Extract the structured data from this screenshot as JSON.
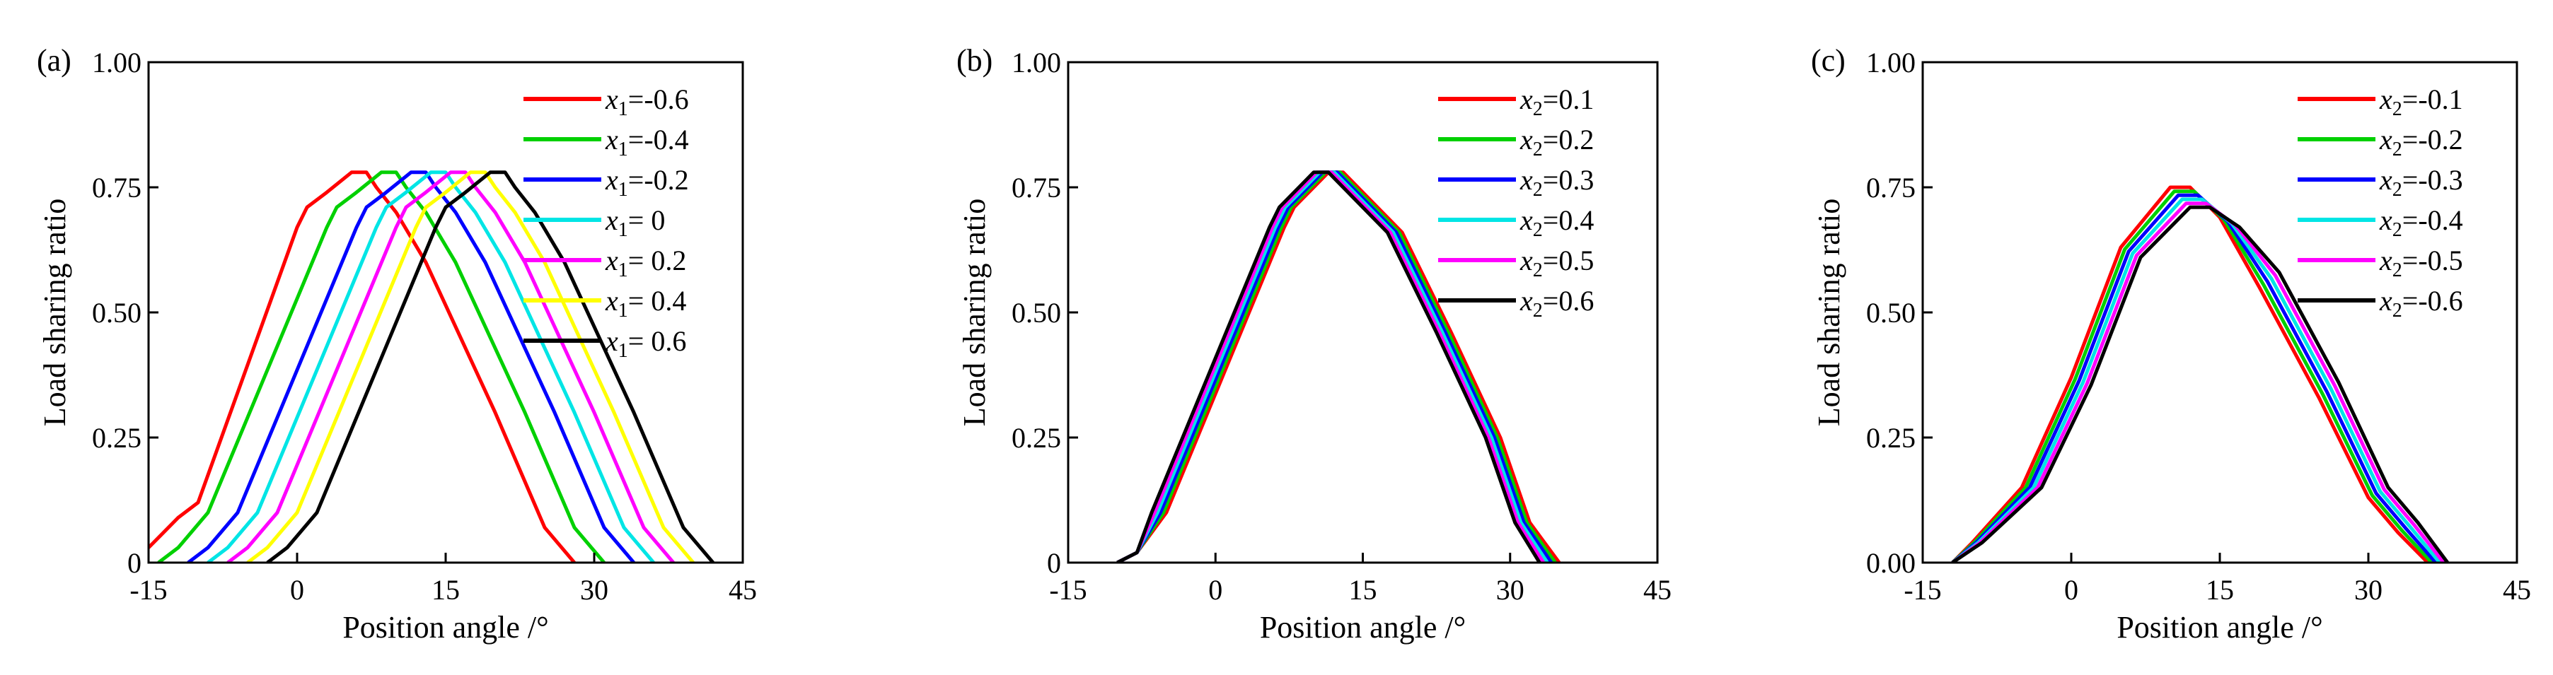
{
  "chart_data": [
    {
      "type": "line",
      "panel_label": "(a)",
      "xlabel": "Position angle /°",
      "ylabel": "Load sharing ratio",
      "xlim": [
        -15,
        45
      ],
      "ylim": [
        0,
        1
      ],
      "xticks": [
        -15,
        0,
        15,
        30,
        45
      ],
      "yticks": [
        0,
        0.25,
        0.5,
        0.75,
        1.0
      ],
      "xtick_labels": [
        "-15",
        "0",
        "15",
        "30",
        "45"
      ],
      "ytick_labels": [
        "0",
        "0.25",
        "0.50",
        "0.75",
        "1.00"
      ],
      "legend_placement": "top-right",
      "series": [
        {
          "name": "x1=-0.6",
          "legend_var": "x",
          "legend_sub": "1",
          "legend_val": "=-0.6",
          "color": "#ff0000",
          "x": [
            -15,
            -12,
            -10,
            0,
            1,
            3,
            5.5,
            7,
            8,
            10,
            13,
            20,
            25,
            28
          ],
          "y": [
            0.03,
            0.09,
            0.12,
            0.67,
            0.71,
            0.74,
            0.78,
            0.78,
            0.75,
            0.7,
            0.6,
            0.3,
            0.07,
            0
          ]
        },
        {
          "name": "x1=-0.4",
          "legend_var": "x",
          "legend_sub": "1",
          "legend_val": "=-0.4",
          "color": "#00d000",
          "x": [
            -14,
            -12,
            -9,
            3,
            4,
            6,
            8.5,
            10,
            11,
            13,
            16,
            23,
            28,
            31
          ],
          "y": [
            0,
            0.03,
            0.1,
            0.67,
            0.71,
            0.74,
            0.78,
            0.78,
            0.75,
            0.7,
            0.6,
            0.3,
            0.07,
            0
          ]
        },
        {
          "name": "x1=-0.2",
          "legend_var": "x",
          "legend_sub": "1",
          "legend_val": "=-0.2",
          "color": "#0000ff",
          "x": [
            -11,
            -9,
            -6,
            6,
            7,
            9,
            11.5,
            13,
            14,
            16,
            19,
            26,
            31,
            34
          ],
          "y": [
            0,
            0.03,
            0.1,
            0.67,
            0.71,
            0.74,
            0.78,
            0.78,
            0.75,
            0.7,
            0.6,
            0.3,
            0.07,
            0
          ]
        },
        {
          "name": "x1= 0",
          "legend_var": "x",
          "legend_sub": "1",
          "legend_val": "= 0",
          "color": "#00e5e5",
          "x": [
            -9,
            -7,
            -4,
            8,
            9,
            11,
            13.5,
            15,
            16,
            18,
            21,
            28,
            33,
            36
          ],
          "y": [
            0,
            0.03,
            0.1,
            0.67,
            0.71,
            0.74,
            0.78,
            0.78,
            0.75,
            0.7,
            0.6,
            0.3,
            0.07,
            0
          ]
        },
        {
          "name": "x1= 0.2",
          "legend_var": "x",
          "legend_sub": "1",
          "legend_val": "= 0.2",
          "color": "#ff00ff",
          "x": [
            -7,
            -5,
            -2,
            10,
            11,
            13,
            15.5,
            17,
            18,
            20,
            23,
            30,
            35,
            38
          ],
          "y": [
            0,
            0.03,
            0.1,
            0.67,
            0.71,
            0.74,
            0.78,
            0.78,
            0.75,
            0.7,
            0.6,
            0.3,
            0.07,
            0
          ]
        },
        {
          "name": "x1= 0.4",
          "legend_var": "x",
          "legend_sub": "1",
          "legend_val": "= 0.4",
          "color": "#ffff00",
          "x": [
            -5,
            -3,
            0,
            12,
            13,
            15,
            17.5,
            19,
            20,
            22,
            25,
            32,
            37,
            40
          ],
          "y": [
            0,
            0.03,
            0.1,
            0.67,
            0.71,
            0.74,
            0.78,
            0.78,
            0.75,
            0.7,
            0.6,
            0.3,
            0.07,
            0
          ]
        },
        {
          "name": "x1= 0.6",
          "legend_var": "x",
          "legend_sub": "1",
          "legend_val": "= 0.6",
          "color": "#000000",
          "x": [
            -3,
            -1,
            2,
            14,
            15,
            17,
            19.5,
            21,
            22,
            24,
            27,
            34,
            39,
            42
          ],
          "y": [
            0,
            0.03,
            0.1,
            0.67,
            0.71,
            0.74,
            0.78,
            0.78,
            0.75,
            0.7,
            0.6,
            0.3,
            0.07,
            0
          ]
        }
      ]
    },
    {
      "type": "line",
      "panel_label": "(b)",
      "xlabel": "Position angle /°",
      "ylabel": "Load sharing ratio",
      "xlim": [
        -15,
        45
      ],
      "ylim": [
        0,
        1
      ],
      "xticks": [
        -15,
        0,
        15,
        30,
        45
      ],
      "yticks": [
        0,
        0.25,
        0.5,
        0.75,
        1.0
      ],
      "xtick_labels": [
        "-15",
        "0",
        "15",
        "30",
        "45"
      ],
      "ytick_labels": [
        "0",
        "0.25",
        "0.50",
        "0.75",
        "1.00"
      ],
      "legend_placement": "top-right",
      "series": [
        {
          "name": "x2=0.1",
          "legend_var": "x",
          "legend_sub": "2",
          "legend_val": "=0.1",
          "color": "#ff0000",
          "x": [
            -10,
            -8,
            -5,
            7,
            8,
            10,
            11.5,
            13,
            15,
            19,
            24,
            29,
            32,
            35
          ],
          "y": [
            0,
            0.02,
            0.1,
            0.67,
            0.71,
            0.75,
            0.78,
            0.78,
            0.74,
            0.66,
            0.46,
            0.25,
            0.08,
            0
          ]
        },
        {
          "name": "x2=0.2",
          "legend_var": "x",
          "legend_sub": "2",
          "legend_val": "=0.2",
          "color": "#00d000",
          "x": [
            -10,
            -8,
            -5.3,
            6.7,
            7.7,
            9.7,
            11.2,
            12.7,
            14.7,
            18.7,
            23.7,
            28.7,
            31.7,
            34.6
          ],
          "y": [
            0,
            0.02,
            0.1,
            0.67,
            0.71,
            0.75,
            0.78,
            0.78,
            0.74,
            0.66,
            0.46,
            0.25,
            0.08,
            0
          ]
        },
        {
          "name": "x2=0.3",
          "legend_var": "x",
          "legend_sub": "2",
          "legend_val": "=0.3",
          "color": "#0000ff",
          "x": [
            -10,
            -8,
            -5.6,
            6.4,
            7.4,
            9.4,
            10.9,
            12.4,
            14.4,
            18.4,
            23.4,
            28.4,
            31.4,
            34.2
          ],
          "y": [
            0,
            0.02,
            0.1,
            0.67,
            0.71,
            0.75,
            0.78,
            0.78,
            0.74,
            0.66,
            0.46,
            0.25,
            0.08,
            0
          ]
        },
        {
          "name": "x2=0.4",
          "legend_var": "x",
          "legend_sub": "2",
          "legend_val": "=0.4",
          "color": "#00e5e5",
          "x": [
            -10,
            -8,
            -5.9,
            6.1,
            7.1,
            9.1,
            10.6,
            12.1,
            14.1,
            18.1,
            23.1,
            28.1,
            31.1,
            33.8
          ],
          "y": [
            0,
            0.02,
            0.1,
            0.67,
            0.71,
            0.75,
            0.78,
            0.78,
            0.74,
            0.66,
            0.46,
            0.25,
            0.08,
            0
          ]
        },
        {
          "name": "x2=0.5",
          "legend_var": "x",
          "legend_sub": "2",
          "legend_val": "=0.5",
          "color": "#ff00ff",
          "x": [
            -10,
            -8,
            -6.2,
            5.8,
            6.8,
            8.8,
            10.3,
            11.8,
            13.8,
            17.8,
            22.8,
            27.8,
            30.8,
            33.4
          ],
          "y": [
            0,
            0.02,
            0.1,
            0.67,
            0.71,
            0.75,
            0.78,
            0.78,
            0.74,
            0.66,
            0.46,
            0.25,
            0.08,
            0
          ]
        },
        {
          "name": "x2=0.6",
          "legend_var": "x",
          "legend_sub": "2",
          "legend_val": "=0.6",
          "color": "#000000",
          "x": [
            -10,
            -8,
            -6.5,
            5.5,
            6.5,
            8.5,
            10,
            11.5,
            13.5,
            17.5,
            22.5,
            27.5,
            30.5,
            33
          ],
          "y": [
            0,
            0.02,
            0.1,
            0.67,
            0.71,
            0.75,
            0.78,
            0.78,
            0.74,
            0.66,
            0.46,
            0.25,
            0.08,
            0
          ]
        }
      ]
    },
    {
      "type": "line",
      "panel_label": "(c)",
      "xlabel": "Position angle /°",
      "ylabel": "Load sharing ratio",
      "xlim": [
        -15,
        45
      ],
      "ylim": [
        0,
        1
      ],
      "xticks": [
        -15,
        0,
        15,
        30,
        45
      ],
      "yticks": [
        0,
        0.25,
        0.5,
        0.75,
        1.0
      ],
      "xtick_labels": [
        "-15",
        "0",
        "15",
        "30",
        "45"
      ],
      "ytick_labels": [
        "0.00",
        "0.25",
        "0.50",
        "0.75",
        "1.00"
      ],
      "legend_placement": "top-right",
      "series": [
        {
          "name": "x2=-0.1",
          "legend_var": "x",
          "legend_sub": "2",
          "legend_val": "=-0.1",
          "color": "#ff0000",
          "x": [
            -12,
            -10,
            -5,
            0,
            5,
            10,
            12,
            15,
            19,
            25,
            30,
            33,
            36
          ],
          "y": [
            0,
            0.04,
            0.15,
            0.37,
            0.63,
            0.75,
            0.75,
            0.69,
            0.55,
            0.33,
            0.13,
            0.06,
            0
          ]
        },
        {
          "name": "x2=-0.2",
          "legend_var": "x",
          "legend_sub": "2",
          "legend_val": "=-0.2",
          "color": "#00d000",
          "x": [
            -12,
            -9.8,
            -4.6,
            0.4,
            5.4,
            10.4,
            12.4,
            15.4,
            19.4,
            25.4,
            30.4,
            33.4,
            36.4
          ],
          "y": [
            0,
            0.04,
            0.15,
            0.367,
            0.626,
            0.742,
            0.742,
            0.686,
            0.556,
            0.336,
            0.134,
            0.064,
            0
          ]
        },
        {
          "name": "x2=-0.3",
          "legend_var": "x",
          "legend_sub": "2",
          "legend_val": "=-0.3",
          "color": "#0000ff",
          "x": [
            -12,
            -9.6,
            -4.2,
            0.8,
            5.8,
            10.8,
            12.8,
            15.8,
            19.8,
            25.8,
            30.8,
            33.8,
            36.8
          ],
          "y": [
            0,
            0.04,
            0.15,
            0.364,
            0.622,
            0.734,
            0.734,
            0.682,
            0.562,
            0.342,
            0.138,
            0.068,
            0
          ]
        },
        {
          "name": "x2=-0.4",
          "legend_var": "x",
          "legend_sub": "2",
          "legend_val": "=-0.4",
          "color": "#00e5e5",
          "x": [
            -12,
            -9.4,
            -3.8,
            1.2,
            6.2,
            11.2,
            13.2,
            16.2,
            20.2,
            26.2,
            31.2,
            34.2,
            37.2
          ],
          "y": [
            0,
            0.04,
            0.15,
            0.361,
            0.618,
            0.726,
            0.726,
            0.678,
            0.568,
            0.348,
            0.142,
            0.072,
            0
          ]
        },
        {
          "name": "x2=-0.5",
          "legend_var": "x",
          "legend_sub": "2",
          "legend_val": "=-0.5",
          "color": "#ff00ff",
          "x": [
            -12,
            -9.2,
            -3.4,
            1.6,
            6.6,
            11.6,
            13.6,
            16.6,
            20.6,
            26.6,
            31.6,
            34.6,
            37.6
          ],
          "y": [
            0,
            0.04,
            0.15,
            0.358,
            0.614,
            0.718,
            0.718,
            0.674,
            0.574,
            0.354,
            0.146,
            0.076,
            0
          ]
        },
        {
          "name": "x2=-0.6",
          "legend_var": "x",
          "legend_sub": "2",
          "legend_val": "=-0.6",
          "color": "#000000",
          "x": [
            -12,
            -9,
            -3,
            2,
            7,
            12,
            14,
            17,
            21,
            27,
            32,
            35,
            38
          ],
          "y": [
            0,
            0.04,
            0.15,
            0.355,
            0.61,
            0.71,
            0.71,
            0.67,
            0.58,
            0.36,
            0.15,
            0.08,
            0
          ]
        }
      ]
    }
  ]
}
